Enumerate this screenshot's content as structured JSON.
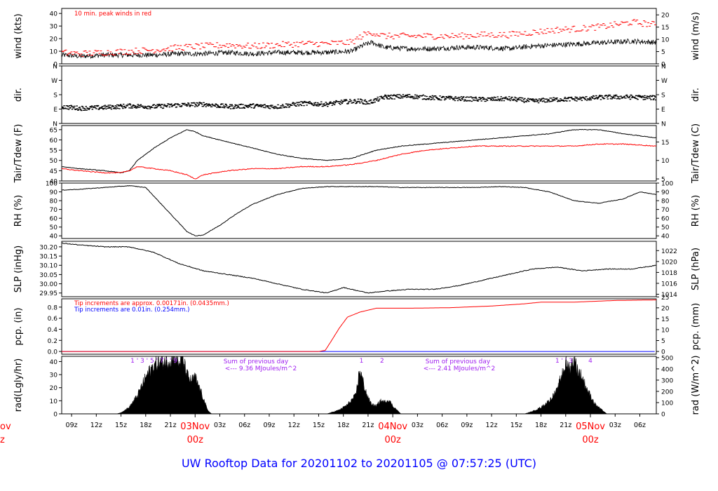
{
  "title": "UW Rooftop Data for 20201102  to  20201105 @ 07:57:25  (UTC)",
  "colors": {
    "frame": "#000000",
    "red": "#ff0000",
    "blue": "#0000ff",
    "purple": "#a020f0",
    "title": "#0000ff"
  },
  "x_axis": {
    "ticks": [
      "09z",
      "12z",
      "15z",
      "18z",
      "21z",
      "03z",
      "06z",
      "09z",
      "12z",
      "15z",
      "18z",
      "21z",
      "03z",
      "06z",
      "09z",
      "12z",
      "15z",
      "18z",
      "21z",
      "03z",
      "06z"
    ],
    "tick_hours": [
      9,
      12,
      15,
      18,
      21,
      27,
      30,
      33,
      36,
      39,
      42,
      45,
      51,
      54,
      57,
      60,
      63,
      66,
      69,
      75,
      78
    ],
    "day_labels": [
      {
        "date": "03Nov",
        "time": "00z",
        "hour": 24
      },
      {
        "date": "04Nov",
        "time": "00z",
        "hour": 48
      },
      {
        "date": "05Nov",
        "time": "00z",
        "hour": 72
      }
    ],
    "edge_fragment": {
      "date": "ov",
      "time": "z"
    },
    "range_hours": [
      7.8,
      80.0
    ]
  },
  "panels": {
    "wind": {
      "left_label": "wind (kts)",
      "right_label": "wind (m/s)",
      "left_ticks": [
        "0",
        "10",
        "20",
        "30",
        "40"
      ],
      "right_ticks": [
        "0",
        "5",
        "10",
        "15",
        "20"
      ],
      "annotation": "10 min. peak winds in red"
    },
    "dir": {
      "left_label": "dir.",
      "right_label": "dir.",
      "left_ticks": [
        "N",
        "E",
        "S",
        "W",
        "N"
      ],
      "right_ticks": [
        "N",
        "E",
        "S",
        "W",
        "N"
      ]
    },
    "temp": {
      "left_label": "Tair/Tdew (F)",
      "right_label": "Tair/Tdew (C)",
      "left_ticks": [
        "40",
        "45",
        "50",
        "55",
        "60",
        "65"
      ],
      "right_ticks": [
        "5",
        "10",
        "15"
      ]
    },
    "rh": {
      "left_label": "RH (%)",
      "right_label": "RH (%)",
      "left_ticks": [
        "40",
        "50",
        "60",
        "70",
        "80",
        "90",
        "100"
      ],
      "right_ticks": [
        "40",
        "50",
        "60",
        "70",
        "80",
        "90",
        "100"
      ]
    },
    "slp": {
      "left_label": "SLP (inHg)",
      "right_label": "SLP (hPa)",
      "left_ticks": [
        "29.95",
        "30.00",
        "30.05",
        "30.10",
        "30.15",
        "30.20"
      ],
      "right_ticks": [
        "1014",
        "1016",
        "1018",
        "1020",
        "1022"
      ]
    },
    "pcp": {
      "left_label": "pcp. (in)",
      "right_label": "pcp. (mm)",
      "left_ticks": [
        "0.0",
        "0.2",
        "0.4",
        "0.6",
        "0.8"
      ],
      "right_ticks": [
        "0",
        "5",
        "10",
        "15",
        "20",
        "25"
      ],
      "note_red": "Tip increments are approx. 0.00171in. (0.0435mm.)",
      "note_blue": "Tip increments are 0.01in. (0.254mm.)"
    },
    "rad": {
      "left_label": "rad(Lgly/hr)",
      "right_label": "rad (W/m^2)",
      "left_ticks": [
        "0",
        "10",
        "20",
        "30",
        "40"
      ],
      "right_ticks": [
        "0",
        "100",
        "200",
        "300",
        "400",
        "500"
      ],
      "sum_label": "Sum of previous day",
      "sums": [
        "<--- 9.36 MJoules/m^2",
        "<--- 2.41 MJoules/m^2"
      ],
      "day_markers": [
        {
          "text": "1 ' 3 ' 5 ' 7 '  ' 9",
          "hour": 19.0
        },
        {
          "text": "1",
          "hour": 44.2
        },
        {
          "text": "2",
          "hour": 46.7
        },
        {
          "text": "1 ' ' 3",
          "hour": 68.8
        },
        {
          "text": "4",
          "hour": 72.0
        }
      ]
    }
  },
  "chart_data": [
    {
      "type": "line",
      "title": "",
      "xlabel": "",
      "ylabel": "wind (kts)",
      "ylim": [
        0,
        44
      ],
      "grid": false,
      "x": [
        7.8,
        10,
        13,
        16,
        19,
        22,
        25,
        28,
        31,
        34,
        37,
        40,
        43,
        44.5,
        45.5,
        47,
        50,
        53,
        56,
        59,
        62,
        65,
        68,
        71,
        74,
        77,
        80
      ],
      "series": [
        {
          "name": "",
          "values": [
            7,
            6,
            7,
            7,
            7,
            8,
            8,
            9,
            8,
            9,
            9,
            9,
            10,
            15,
            17,
            13,
            12,
            12,
            13,
            13,
            12,
            14,
            15,
            16,
            17,
            18,
            17
          ]
        },
        {
          "name": "10 min. peak winds in red",
          "values": [
            9,
            8,
            9,
            10,
            11,
            13,
            14,
            15,
            14,
            15,
            16,
            16,
            17,
            23,
            25,
            22,
            22,
            22,
            22,
            23,
            23,
            25,
            27,
            28,
            30,
            33,
            31
          ]
        }
      ]
    },
    {
      "type": "scatter",
      "title": "",
      "xlabel": "",
      "ylabel": "dir.",
      "ylim": [
        0,
        360
      ],
      "grid": false,
      "x": [
        7.8,
        10,
        13,
        16,
        19,
        22,
        25,
        28,
        31,
        34,
        37,
        40,
        42,
        44,
        45,
        47,
        50,
        53,
        56,
        59,
        62,
        65,
        68,
        71,
        74,
        77,
        80
      ],
      "values": [
        105,
        95,
        100,
        110,
        105,
        115,
        120,
        105,
        110,
        105,
        125,
        120,
        135,
        140,
        130,
        165,
        170,
        160,
        155,
        150,
        155,
        140,
        150,
        155,
        165,
        165,
        160
      ]
    },
    {
      "type": "line",
      "title": "",
      "xlabel": "",
      "ylabel": "Tair/Tdew (F)",
      "ylim": [
        40,
        67
      ],
      "grid": false,
      "x": [
        7.8,
        10,
        13,
        15,
        16,
        17,
        19,
        21,
        23,
        24,
        25,
        28,
        31,
        34,
        37,
        40,
        43,
        46,
        49,
        52,
        55,
        58,
        61,
        64,
        67,
        70,
        73,
        76,
        80
      ],
      "series": [
        {
          "name": "",
          "values": [
            47,
            46,
            45,
            44,
            45,
            50,
            56,
            61,
            65,
            64,
            62,
            59,
            56,
            53,
            51,
            50,
            51,
            55,
            57,
            58,
            59,
            60,
            61,
            62,
            63,
            65,
            65,
            63,
            61
          ]
        },
        {
          "name": "",
          "values": [
            46,
            45,
            44,
            44,
            45,
            47,
            46,
            45,
            43,
            41,
            43,
            45,
            46,
            46,
            47,
            47,
            48,
            50,
            53,
            55,
            56,
            57,
            57,
            57,
            57,
            57,
            58,
            58,
            57
          ]
        }
      ]
    },
    {
      "type": "line",
      "title": "",
      "xlabel": "",
      "ylabel": "RH (%)",
      "ylim": [
        37,
        100
      ],
      "grid": false,
      "x": [
        7.8,
        10,
        13,
        16,
        18,
        20,
        22,
        23,
        24,
        25,
        27,
        29,
        31,
        34,
        37,
        40,
        43,
        46,
        49,
        52,
        55,
        58,
        61,
        64,
        67,
        70,
        73,
        76,
        78,
        80
      ],
      "values": [
        92,
        93,
        95,
        97,
        95,
        75,
        55,
        45,
        40,
        41,
        52,
        65,
        76,
        87,
        94,
        96,
        96,
        96,
        95,
        95,
        95,
        95,
        96,
        95,
        90,
        80,
        77,
        82,
        90,
        87
      ]
    },
    {
      "type": "line",
      "title": "",
      "xlabel": "",
      "ylabel": "SLP (inHg)",
      "ylim": [
        29.93,
        30.23
      ],
      "grid": false,
      "x": [
        7.8,
        10,
        13,
        16,
        19,
        22,
        25,
        28,
        31,
        34,
        37,
        40,
        42,
        43,
        45,
        47,
        50,
        53,
        56,
        59,
        62,
        65,
        68,
        71,
        74,
        77,
        80
      ],
      "values": [
        30.22,
        30.21,
        30.2,
        30.2,
        30.17,
        30.11,
        30.07,
        30.05,
        30.03,
        30.0,
        29.97,
        29.95,
        29.98,
        29.97,
        29.95,
        29.96,
        29.97,
        29.97,
        29.99,
        30.02,
        30.05,
        30.08,
        30.09,
        30.07,
        30.08,
        30.08,
        30.1
      ]
    },
    {
      "type": "line",
      "title": "",
      "xlabel": "",
      "ylabel": "pcp. (in)",
      "ylim": [
        -0.05,
        0.95
      ],
      "grid": false,
      "x": [
        7.8,
        20,
        30,
        39,
        39.8,
        40.5,
        41.5,
        42.5,
        44,
        46,
        50,
        55,
        60,
        64,
        66,
        70,
        75,
        80
      ],
      "series": [
        {
          "name": "Tip increments are approx. 0.00171in. (0.0435mm.)",
          "values": [
            0,
            0,
            0,
            0,
            0.02,
            0.18,
            0.42,
            0.62,
            0.71,
            0.78,
            0.78,
            0.79,
            0.82,
            0.86,
            0.89,
            0.89,
            0.92,
            0.93
          ]
        },
        {
          "name": "Tip increments are 0.01in. (0.254mm.)",
          "values": [
            0,
            0,
            0,
            0,
            0,
            0,
            0,
            0,
            0,
            0,
            0,
            0,
            0,
            0,
            0,
            0,
            0,
            0
          ]
        }
      ]
    },
    {
      "type": "area",
      "title": "",
      "xlabel": "",
      "ylabel": "rad(Lgly/hr)",
      "ylim": [
        0,
        44
      ],
      "grid": false,
      "x": [
        7.8,
        14.5,
        15,
        16,
        17,
        18,
        19,
        20,
        21,
        21.5,
        22,
        22.5,
        23,
        23.5,
        24,
        24.5,
        25,
        25.5,
        26,
        40,
        40.5,
        41.5,
        42.5,
        43.5,
        44,
        44.5,
        45,
        45.5,
        46,
        46.5,
        47,
        47.5,
        48,
        48.5,
        49,
        64,
        65,
        66,
        67,
        68,
        68.5,
        69,
        69.5,
        70,
        70.5,
        71,
        71.5,
        72,
        72.5,
        73,
        74,
        80
      ],
      "values": [
        0,
        0,
        1,
        5,
        14,
        28,
        37,
        40,
        41,
        44,
        38,
        42,
        30,
        25,
        28,
        20,
        12,
        3,
        0,
        0,
        1,
        3,
        7,
        14,
        34,
        22,
        12,
        7,
        6,
        10,
        9,
        11,
        6,
        3,
        0,
        0,
        2,
        5,
        10,
        18,
        30,
        38,
        35,
        42,
        33,
        28,
        20,
        14,
        8,
        5,
        0,
        0
      ]
    }
  ]
}
